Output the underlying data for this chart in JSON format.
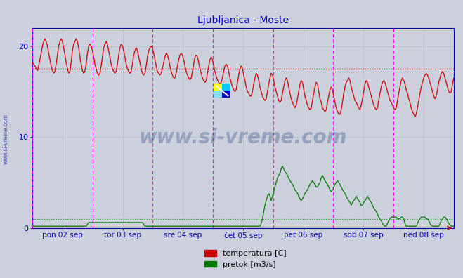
{
  "title": "Ljubljanica - Moste",
  "title_color": "#0000cc",
  "bg_color": "#ccd0dc",
  "plot_bg_color": "#ccd0dc",
  "grid_color": "#aab0c0",
  "xlabels": [
    "pon 02 sep",
    "tor 03 sep",
    "sre 04 sep",
    "čet 05 sep",
    "pet 06 sep",
    "sob 07 sep",
    "ned 08 sep"
  ],
  "yticks": [
    0,
    10,
    20
  ],
  "ylim": [
    0,
    22
  ],
  "xlim": [
    0,
    336
  ],
  "vline_color": "#ff00ff",
  "hline_temp_color": "#cc0000",
  "hline_flow_color": "#00aa00",
  "temp_color": "#cc0000",
  "flow_color": "#007700",
  "watermark": "www.si-vreme.com",
  "watermark_color": "#1a3a7a",
  "legend_labels": [
    "temperatura [C]",
    "pretok [m3/s]"
  ],
  "legend_colors": [
    "#cc0000",
    "#007700"
  ],
  "temp_avg": 17.5,
  "flow_avg": 1.0,
  "temp_data": [
    18.2,
    18.0,
    17.8,
    17.5,
    17.3,
    17.8,
    18.5,
    19.2,
    20.0,
    20.5,
    20.8,
    20.5,
    20.0,
    19.2,
    18.5,
    17.8,
    17.3,
    17.0,
    17.2,
    18.0,
    19.0,
    20.0,
    20.5,
    20.8,
    20.5,
    19.8,
    19.0,
    18.2,
    17.5,
    17.0,
    17.2,
    18.2,
    19.5,
    20.2,
    20.5,
    20.8,
    20.5,
    19.8,
    18.8,
    18.0,
    17.3,
    17.0,
    17.2,
    18.0,
    19.2,
    20.0,
    20.2,
    20.0,
    19.5,
    18.8,
    18.0,
    17.5,
    17.0,
    16.8,
    17.0,
    17.8,
    18.8,
    19.8,
    20.2,
    20.5,
    20.2,
    19.5,
    18.8,
    18.0,
    17.5,
    17.2,
    17.0,
    17.2,
    18.0,
    19.0,
    19.8,
    20.2,
    20.0,
    19.5,
    18.8,
    18.0,
    17.5,
    17.2,
    17.0,
    17.2,
    18.0,
    19.0,
    19.5,
    19.8,
    19.5,
    18.8,
    18.2,
    17.5,
    17.0,
    16.8,
    17.0,
    17.8,
    18.8,
    19.5,
    19.8,
    20.0,
    19.8,
    19.2,
    18.5,
    17.8,
    17.2,
    17.0,
    16.8,
    17.0,
    17.5,
    18.2,
    18.8,
    19.2,
    19.0,
    18.5,
    17.8,
    17.2,
    16.8,
    16.5,
    16.5,
    17.0,
    17.8,
    18.5,
    19.0,
    19.2,
    19.0,
    18.5,
    17.8,
    17.2,
    16.8,
    16.5,
    16.3,
    16.5,
    17.2,
    18.0,
    18.8,
    19.0,
    18.8,
    18.2,
    17.5,
    17.0,
    16.5,
    16.2,
    16.0,
    16.2,
    17.0,
    17.8,
    18.5,
    18.8,
    18.5,
    17.8,
    17.2,
    16.7,
    16.3,
    16.0,
    15.8,
    16.0,
    16.5,
    17.2,
    17.8,
    18.0,
    17.8,
    17.2,
    16.5,
    16.0,
    15.5,
    15.2,
    15.0,
    15.2,
    16.0,
    16.8,
    17.5,
    17.8,
    17.5,
    16.8,
    16.2,
    15.5,
    15.0,
    14.8,
    14.5,
    14.5,
    15.0,
    15.8,
    16.5,
    17.0,
    16.8,
    16.2,
    15.5,
    15.0,
    14.5,
    14.2,
    14.0,
    14.2,
    15.0,
    15.8,
    16.5,
    17.0,
    16.8,
    16.2,
    15.5,
    15.0,
    14.5,
    14.0,
    13.8,
    14.0,
    14.8,
    15.5,
    16.2,
    16.5,
    16.2,
    15.5,
    14.8,
    14.2,
    13.8,
    13.5,
    13.2,
    13.5,
    14.2,
    15.0,
    15.8,
    16.2,
    16.0,
    15.2,
    14.5,
    14.0,
    13.5,
    13.2,
    13.0,
    13.2,
    14.0,
    14.8,
    15.5,
    16.0,
    15.8,
    15.0,
    14.2,
    13.8,
    13.2,
    13.0,
    12.8,
    13.0,
    13.8,
    14.5,
    15.2,
    15.5,
    15.2,
    14.5,
    13.8,
    13.2,
    12.8,
    12.5,
    12.5,
    13.0,
    13.8,
    14.8,
    15.5,
    16.0,
    16.2,
    16.5,
    16.2,
    15.5,
    15.0,
    14.5,
    14.0,
    13.8,
    13.5,
    13.2,
    13.0,
    13.5,
    14.2,
    15.0,
    15.8,
    16.2,
    16.0,
    15.5,
    15.0,
    14.5,
    14.0,
    13.5,
    13.2,
    13.0,
    13.2,
    14.0,
    14.8,
    15.5,
    16.0,
    16.2,
    16.0,
    15.5,
    15.0,
    14.5,
    14.0,
    13.8,
    13.5,
    13.2,
    13.0,
    13.2,
    14.0,
    14.8,
    15.5,
    16.2,
    16.5,
    16.2,
    15.8,
    15.2,
    14.8,
    14.2,
    13.8,
    13.2,
    12.8,
    12.5,
    12.2,
    12.5,
    13.2,
    14.0,
    14.8,
    15.5,
    16.0,
    16.5,
    16.8,
    17.0,
    16.8,
    16.5,
    16.0,
    15.5,
    15.0,
    14.5,
    14.2,
    14.5,
    15.2,
    16.0,
    16.5,
    17.0,
    17.2,
    17.0,
    16.5,
    16.0,
    15.5,
    15.0,
    14.8,
    15.0,
    15.8,
    16.5
  ],
  "flow_data": [
    0.3,
    0.2,
    0.2,
    0.2,
    0.2,
    0.2,
    0.2,
    0.2,
    0.2,
    0.2,
    0.2,
    0.2,
    0.2,
    0.2,
    0.2,
    0.2,
    0.2,
    0.2,
    0.2,
    0.2,
    0.2,
    0.2,
    0.2,
    0.2,
    0.2,
    0.2,
    0.2,
    0.2,
    0.2,
    0.2,
    0.2,
    0.2,
    0.2,
    0.2,
    0.2,
    0.2,
    0.2,
    0.2,
    0.2,
    0.2,
    0.2,
    0.2,
    0.2,
    0.2,
    0.4,
    0.6,
    0.6,
    0.6,
    0.6,
    0.6,
    0.6,
    0.6,
    0.6,
    0.6,
    0.6,
    0.6,
    0.6,
    0.6,
    0.6,
    0.6,
    0.6,
    0.6,
    0.6,
    0.6,
    0.6,
    0.6,
    0.6,
    0.6,
    0.6,
    0.6,
    0.6,
    0.6,
    0.6,
    0.6,
    0.6,
    0.6,
    0.6,
    0.6,
    0.6,
    0.6,
    0.6,
    0.6,
    0.6,
    0.6,
    0.6,
    0.6,
    0.6,
    0.6,
    0.6,
    0.4,
    0.2,
    0.2,
    0.2,
    0.2,
    0.2,
    0.2,
    0.2,
    0.2,
    0.2,
    0.2,
    0.2,
    0.2,
    0.2,
    0.2,
    0.2,
    0.2,
    0.2,
    0.2,
    0.2,
    0.2,
    0.2,
    0.2,
    0.2,
    0.2,
    0.2,
    0.2,
    0.2,
    0.2,
    0.2,
    0.2,
    0.2,
    0.2,
    0.2,
    0.2,
    0.2,
    0.2,
    0.2,
    0.2,
    0.2,
    0.2,
    0.2,
    0.2,
    0.2,
    0.2,
    0.2,
    0.2,
    0.2,
    0.2,
    0.2,
    0.2,
    0.2,
    0.2,
    0.2,
    0.2,
    0.2,
    0.2,
    0.2,
    0.2,
    0.2,
    0.2,
    0.2,
    0.2,
    0.2,
    0.2,
    0.2,
    0.2,
    0.2,
    0.2,
    0.2,
    0.2,
    0.2,
    0.2,
    0.2,
    0.2,
    0.2,
    0.2,
    0.2,
    0.2,
    0.2,
    0.2,
    0.2,
    0.2,
    0.2,
    0.2,
    0.2,
    0.2,
    0.2,
    0.2,
    0.2,
    0.2,
    0.2,
    0.2,
    0.2,
    0.5,
    1.0,
    1.8,
    2.5,
    3.0,
    3.5,
    3.8,
    3.5,
    3.0,
    3.5,
    4.0,
    4.5,
    5.0,
    5.5,
    5.8,
    6.0,
    6.5,
    6.8,
    6.5,
    6.2,
    6.0,
    5.8,
    5.5,
    5.2,
    5.0,
    4.8,
    4.5,
    4.2,
    4.0,
    3.8,
    3.5,
    3.2,
    3.0,
    3.2,
    3.5,
    3.8,
    4.0,
    4.2,
    4.5,
    4.8,
    5.0,
    5.2,
    5.0,
    4.8,
    4.5,
    4.5,
    4.8,
    5.0,
    5.5,
    5.8,
    5.5,
    5.2,
    5.0,
    4.8,
    4.5,
    4.2,
    4.0,
    4.2,
    4.5,
    4.8,
    5.0,
    5.2,
    5.0,
    4.8,
    4.5,
    4.2,
    4.0,
    3.8,
    3.5,
    3.2,
    3.0,
    2.8,
    2.5,
    2.8,
    3.0,
    3.2,
    3.5,
    3.2,
    3.0,
    2.8,
    2.5,
    2.5,
    2.8,
    3.0,
    3.2,
    3.5,
    3.2,
    3.0,
    2.8,
    2.5,
    2.2,
    2.0,
    1.8,
    1.5,
    1.2,
    1.0,
    0.8,
    0.5,
    0.3,
    0.2,
    0.2,
    0.5,
    0.8,
    1.0,
    1.2,
    1.2,
    1.2,
    1.2,
    1.2,
    1.0,
    1.0,
    1.0,
    1.2,
    1.2,
    1.0,
    0.5,
    0.2,
    0.2,
    0.2,
    0.2,
    0.2,
    0.2,
    0.2,
    0.2,
    0.2,
    0.5,
    0.8,
    1.0,
    1.2,
    1.2,
    1.2,
    1.2,
    1.0,
    1.0,
    0.8,
    0.5,
    0.3,
    0.2,
    0.2,
    0.2,
    0.2,
    0.2,
    0.2,
    0.5,
    0.8,
    1.0,
    1.2,
    1.2,
    1.0,
    0.8,
    0.5,
    0.3,
    0.2,
    0.2,
    0.2
  ]
}
